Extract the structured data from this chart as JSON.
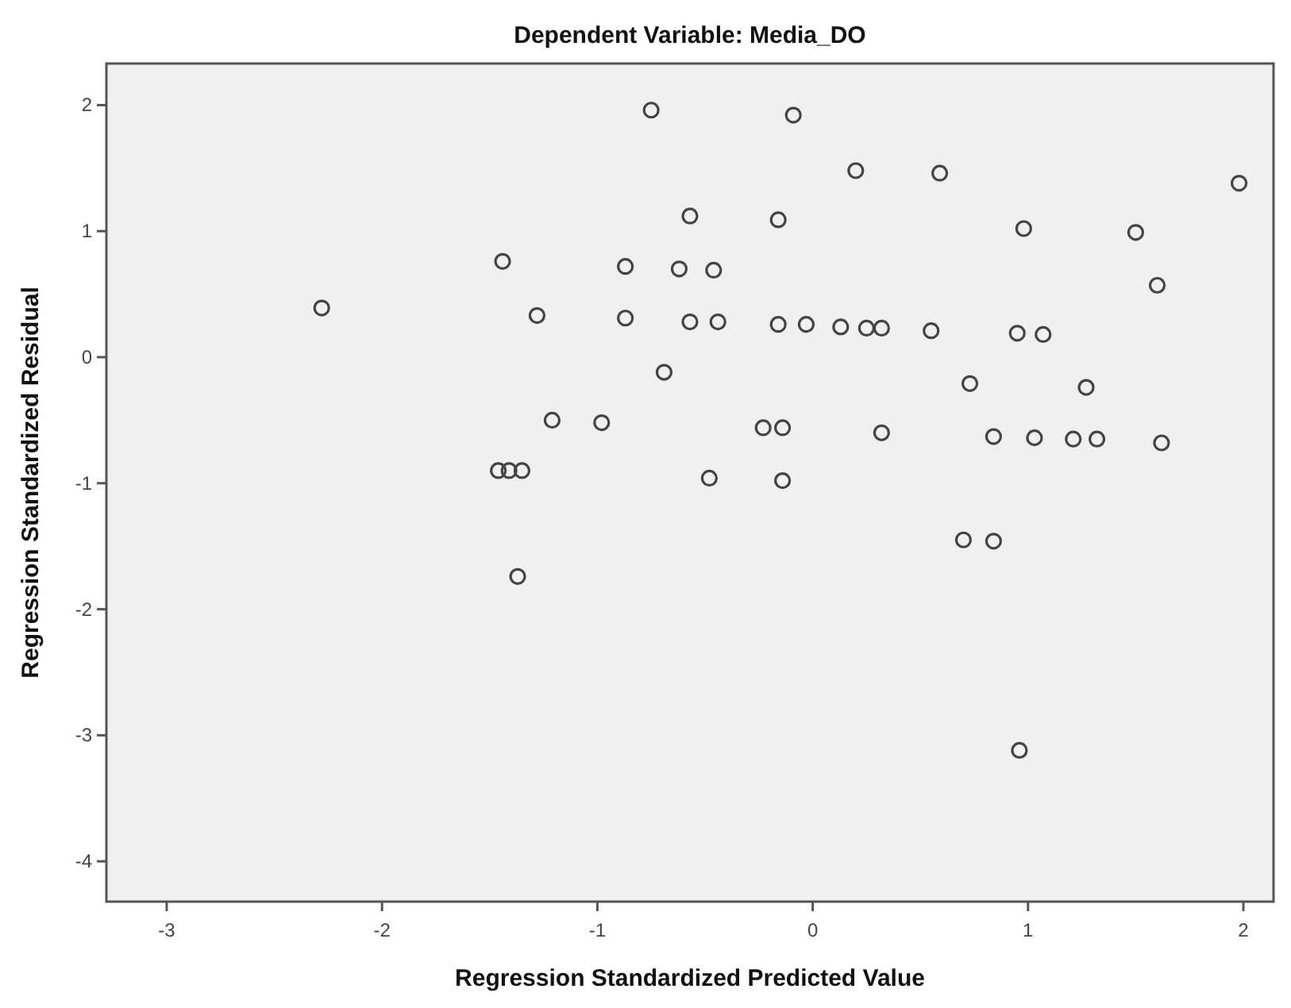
{
  "chart_data": {
    "type": "scatter",
    "title": "Dependent Variable: Media_DO",
    "xlabel": "Regression Standardized Predicted Value",
    "ylabel": "Regression Standardized Residual",
    "marker": "circle",
    "xlim": [
      -3.28,
      2.14
    ],
    "ylim": [
      -4.32,
      2.33
    ],
    "xticks": [
      -3,
      -2,
      -1,
      0,
      1,
      2
    ],
    "yticks": [
      -4,
      -3,
      -2,
      -1,
      0,
      1,
      2
    ],
    "series": [
      {
        "color": "#444444",
        "x": [
          -2.28,
          -1.44,
          -1.28,
          -0.87,
          -0.87,
          -0.75,
          -1.21,
          -0.98,
          -1.46,
          -1.41,
          -1.35,
          -0.69,
          -1.37,
          -0.09,
          0.2,
          0.59,
          1.98,
          -0.57,
          -0.16,
          0.98,
          1.5,
          -0.62,
          -0.46,
          1.6,
          -0.57,
          -0.44,
          -0.16,
          -0.03,
          0.13,
          0.25,
          0.32,
          0.55,
          0.95,
          1.07,
          0.73,
          1.27,
          -0.23,
          -0.14,
          0.32,
          0.84,
          1.03,
          1.21,
          1.32,
          1.62,
          -0.48,
          -0.14,
          0.7,
          0.84,
          0.96
        ],
        "values": [
          0.39,
          0.76,
          0.33,
          0.72,
          0.31,
          1.96,
          -0.5,
          -0.52,
          -0.9,
          -0.9,
          -0.9,
          -0.12,
          -1.74,
          1.92,
          1.48,
          1.46,
          1.38,
          1.12,
          1.09,
          1.02,
          0.99,
          0.7,
          0.69,
          0.57,
          0.28,
          0.28,
          0.26,
          0.26,
          0.24,
          0.23,
          0.23,
          0.21,
          0.19,
          0.18,
          -0.21,
          -0.24,
          -0.56,
          -0.56,
          -0.6,
          -0.63,
          -0.64,
          -0.65,
          -0.65,
          -0.68,
          -0.96,
          -0.98,
          -1.45,
          -1.46,
          -3.12
        ]
      }
    ]
  }
}
